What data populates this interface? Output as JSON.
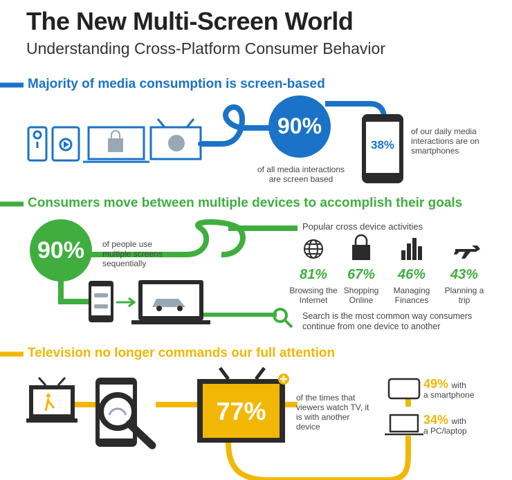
{
  "header": {
    "title": "The New Multi-Screen World",
    "subtitle": "Understanding Cross-Platform Consumer Behavior"
  },
  "section1": {
    "heading": "Majority of media consumption is screen-based",
    "big_stat": "90%",
    "big_stat_caption": "of all media interactions are screen based",
    "phone_stat": "38%",
    "phone_stat_caption": "of our daily media interactions are on smartphones",
    "color": "#1a73c6"
  },
  "section2": {
    "heading": "Consumers move between multiple devices to accomplish their goals",
    "big_stat": "90%",
    "big_stat_caption": "of people use multiple screens sequentially",
    "activities_title": "Popular cross device activities",
    "activities": [
      {
        "icon": "globe-icon",
        "pct": "81%",
        "label": "Browsing the Internet"
      },
      {
        "icon": "shopping-bag-icon",
        "pct": "67%",
        "label": "Shopping Online"
      },
      {
        "icon": "bar-chart-icon",
        "pct": "46%",
        "label": "Managing Finances"
      },
      {
        "icon": "airplane-icon",
        "pct": "43%",
        "label": "Planning a trip"
      }
    ],
    "search_note": "Search is the most common way consumers continue from one device to another",
    "color": "#3fae3f"
  },
  "section3": {
    "heading": "Television no longer commands our full attention",
    "big_stat": "77%",
    "big_stat_caption": "of the times that viewers watch TV, it is with another device",
    "smartphone_pct": "49%",
    "smartphone_label1": "with",
    "smartphone_label2": "a smartphone",
    "pc_pct": "34%",
    "pc_label1": "with",
    "pc_label2": "a PC/laptop",
    "color": "#f2b705"
  }
}
